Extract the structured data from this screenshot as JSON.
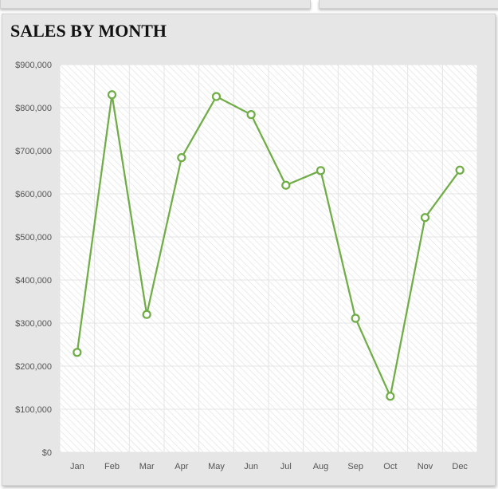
{
  "chart_data": {
    "type": "line",
    "title": "SALES BY MONTH",
    "xlabel": "",
    "ylabel": "",
    "categories": [
      "Jan",
      "Feb",
      "Mar",
      "Apr",
      "May",
      "Jun",
      "Jul",
      "Aug",
      "Sep",
      "Oct",
      "Nov",
      "Dec"
    ],
    "series": [
      {
        "values": [
          232000,
          830000,
          320000,
          684000,
          826000,
          784000,
          620000,
          654000,
          311000,
          130000,
          545000,
          655000
        ]
      }
    ],
    "ylim": [
      0,
      900000
    ],
    "yticks": [
      "$0",
      "$100,000",
      "$200,000",
      "$300,000",
      "$400,000",
      "$500,000",
      "$600,000",
      "$700,000",
      "$800,000",
      "$900,000"
    ],
    "grid": true,
    "legend": "none",
    "colors": {
      "line": "#70ad47",
      "marker_fill": "#ffffff",
      "plot_background": "#ffffff",
      "hatch": "#dedede",
      "gridline": "#e4e4e4",
      "panel_background": "#e6e6e6"
    }
  }
}
